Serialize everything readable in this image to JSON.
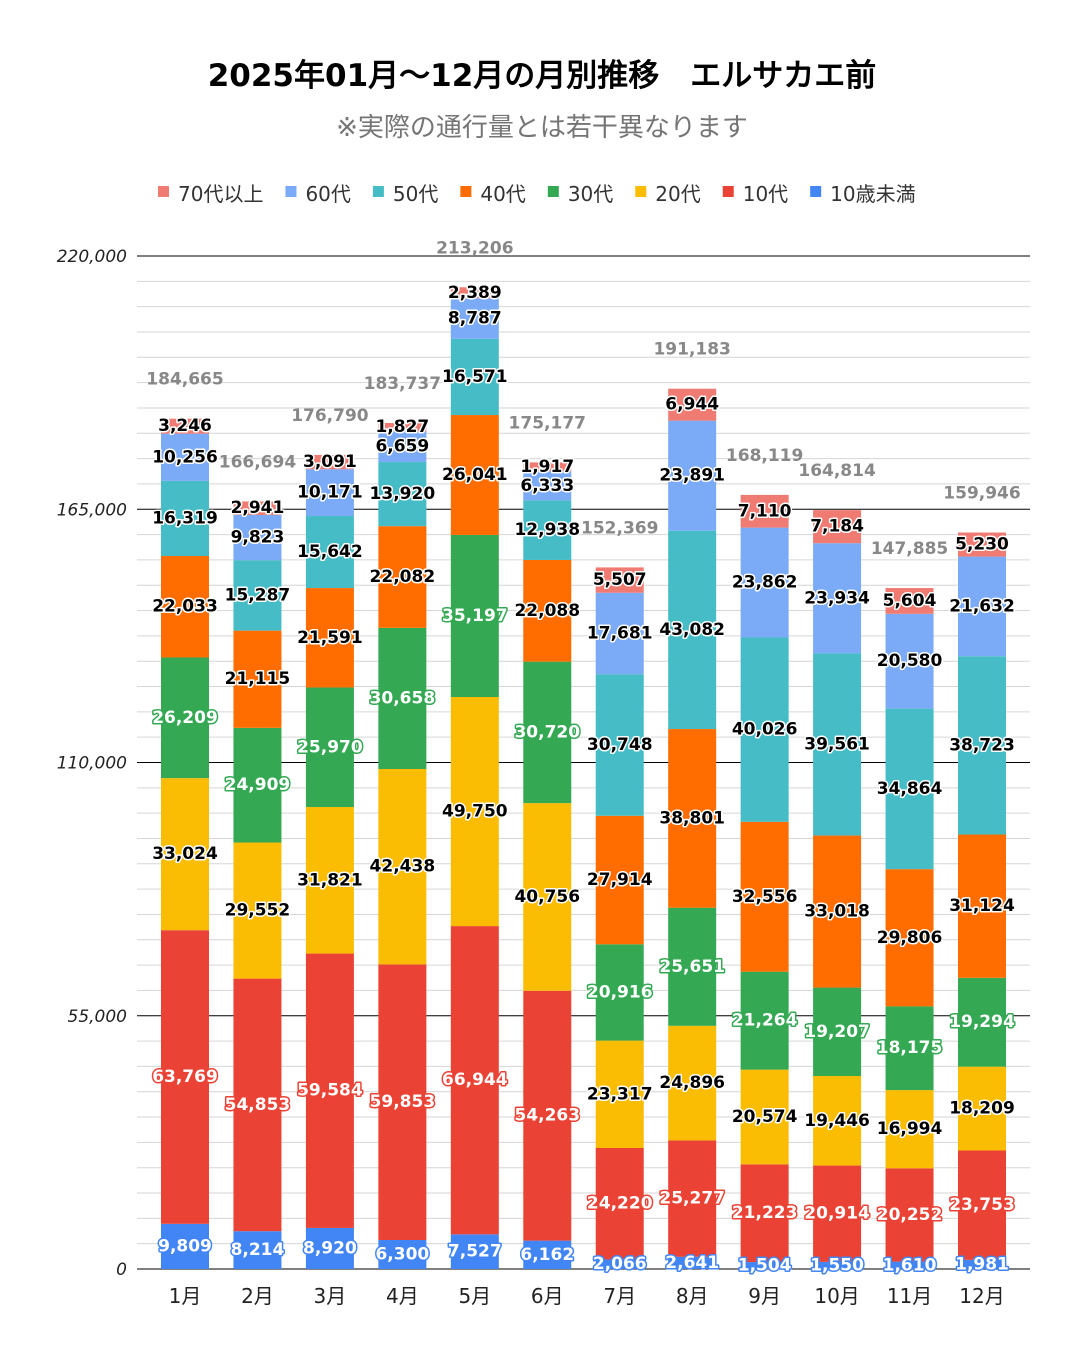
{
  "chart_data": {
    "type": "bar",
    "stacked": true,
    "title": "2025年01月～12月の月別推移　エルサカエ前",
    "subtitle": "※実際の通行量とは若干異なります",
    "xlabel": "",
    "ylabel": "",
    "ylim": [
      0,
      220000
    ],
    "yticks": [
      "0",
      "55,000",
      "110,000",
      "165,000",
      "220,000"
    ],
    "ytick_values": [
      0,
      55000,
      110000,
      165000,
      220000
    ],
    "grid": true,
    "legend_position": "top",
    "categories": [
      "1月",
      "2月",
      "3月",
      "4月",
      "5月",
      "6月",
      "7月",
      "8月",
      "9月",
      "10月",
      "11月",
      "12月"
    ],
    "series": [
      {
        "name": "10歳未満",
        "color": "#4285F4",
        "values": [
          9809,
          8214,
          8920,
          6300,
          7527,
          6162,
          2066,
          2641,
          1504,
          1550,
          1610,
          1981
        ]
      },
      {
        "name": "10代",
        "color": "#EA4335",
        "values": [
          63769,
          54853,
          59584,
          59853,
          66944,
          54263,
          24220,
          25277,
          21223,
          20914,
          20252,
          23753
        ]
      },
      {
        "name": "20代",
        "color": "#FBBC04",
        "values": [
          33024,
          29552,
          31821,
          42438,
          49750,
          40756,
          23317,
          24896,
          20574,
          19446,
          16994,
          18209
        ]
      },
      {
        "name": "30代",
        "color": "#34A853",
        "values": [
          26209,
          24909,
          25970,
          30658,
          35197,
          30720,
          20916,
          25651,
          21264,
          19207,
          18175,
          19294
        ]
      },
      {
        "name": "40代",
        "color": "#FF6D01",
        "values": [
          22033,
          21115,
          21591,
          22082,
          26041,
          22088,
          27914,
          38801,
          32556,
          33018,
          29806,
          31124
        ]
      },
      {
        "name": "50代",
        "color": "#46BDC6",
        "values": [
          16319,
          15287,
          15642,
          13920,
          16571,
          12938,
          30748,
          43082,
          40026,
          39561,
          34864,
          38723
        ]
      },
      {
        "name": "60代",
        "color": "#7BAAF7",
        "values": [
          10256,
          9823,
          10171,
          6659,
          8787,
          6333,
          17681,
          23891,
          23862,
          23934,
          20580,
          21632
        ]
      },
      {
        "name": "70代以上",
        "color": "#F07B72",
        "values": [
          3246,
          2941,
          3091,
          1827,
          2389,
          1917,
          5507,
          6944,
          7110,
          7184,
          5604,
          5230
        ]
      }
    ],
    "totals": [
      184665,
      166694,
      176790,
      183737,
      213206,
      175177,
      152369,
      191183,
      168119,
      164814,
      147885,
      159946
    ],
    "legend_order": [
      "70代以上",
      "60代",
      "50代",
      "40代",
      "30代",
      "20代",
      "10代",
      "10歳未満"
    ]
  }
}
